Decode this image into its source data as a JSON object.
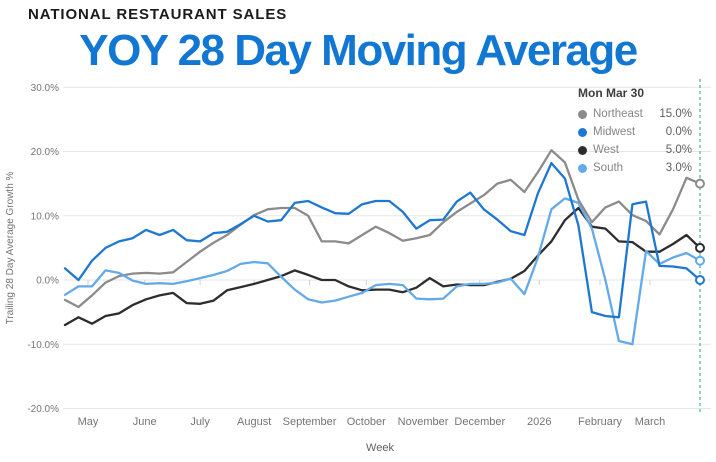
{
  "header": {
    "brand": "NATIONAL RESTAURANT SALES",
    "title": "YOY 28 Day Moving Average",
    "title_color": "#1277d3",
    "brand_color": "#1b1b1b"
  },
  "tooltip": {
    "date_label": "Mon Mar 30",
    "rows": [
      {
        "name": "Northeast",
        "value": "15.0%"
      },
      {
        "name": "Midwest",
        "value": "0.0%"
      },
      {
        "name": "West",
        "value": "5.0%"
      },
      {
        "name": "South",
        "value": "3.0%"
      }
    ]
  },
  "chart_data": {
    "type": "line",
    "title": "YOY 28 Day Moving Average",
    "xlabel": "Week",
    "ylabel": "Trailing 28 Day Average Growth %",
    "ylim": [
      -20,
      30
    ],
    "grid": "horizontal",
    "legend_position": "top-right",
    "y_ticks": [
      {
        "value": 30,
        "label": "30.0%"
      },
      {
        "value": 20,
        "label": "20.0%"
      },
      {
        "value": 10,
        "label": "10.0%"
      },
      {
        "value": 0,
        "label": "0.0%"
      },
      {
        "value": -10,
        "label": "-10.0%"
      },
      {
        "value": -20,
        "label": "-20.0%"
      }
    ],
    "x_ticks": [
      {
        "week": 1.7,
        "label": "May"
      },
      {
        "week": 5.9,
        "label": "June"
      },
      {
        "week": 10,
        "label": "July"
      },
      {
        "week": 14,
        "label": "August"
      },
      {
        "week": 18.1,
        "label": "September"
      },
      {
        "week": 22.3,
        "label": "October"
      },
      {
        "week": 26.5,
        "label": "November"
      },
      {
        "week": 30.7,
        "label": "December"
      },
      {
        "week": 35.1,
        "label": "2026"
      },
      {
        "week": 39.6,
        "label": "February"
      },
      {
        "week": 43.3,
        "label": "March"
      }
    ],
    "n_points": 48,
    "x_is_weekly": true,
    "cursor_date": "Mon Mar 30",
    "cursor_color": "#76c4b2",
    "grid_color": "#e6e6e6",
    "axis_text_color": "#757575",
    "series": [
      {
        "name": "Northeast",
        "color": "#8b8b8b",
        "end_value": 15.0,
        "values": [
          -3.1,
          -4.2,
          -2.4,
          -0.4,
          0.6,
          1.0,
          1.1,
          1.0,
          1.2,
          2.8,
          4.4,
          5.8,
          7.0,
          8.6,
          10.1,
          11.0,
          11.2,
          11.2,
          10.0,
          6.0,
          6.0,
          5.7,
          7.0,
          8.3,
          7.3,
          6.1,
          6.5,
          7.0,
          9.0,
          10.6,
          11.9,
          13.2,
          15.0,
          15.6,
          13.7,
          16.8,
          20.2,
          18.3,
          12.5,
          9.0,
          11.3,
          12.2,
          10.1,
          9.2,
          7.1,
          11.0,
          15.9,
          15.0
        ]
      },
      {
        "name": "Midwest",
        "color": "#1e78d2",
        "end_value": 0.0,
        "values": [
          1.8,
          0.0,
          3.0,
          5.0,
          6.0,
          6.5,
          7.8,
          7.0,
          7.8,
          6.2,
          6.0,
          7.3,
          7.5,
          8.7,
          10.0,
          9.1,
          9.3,
          12.0,
          12.3,
          11.3,
          10.4,
          10.3,
          11.8,
          12.3,
          12.3,
          10.6,
          8.0,
          9.3,
          9.4,
          12.2,
          13.6,
          11.0,
          9.4,
          7.6,
          7.0,
          13.5,
          18.2,
          15.8,
          8.5,
          -5.0,
          -5.6,
          -5.8,
          11.8,
          12.2,
          2.2,
          2.1,
          1.8,
          0.0
        ]
      },
      {
        "name": "West",
        "color": "#2d2d2d",
        "end_value": 5.0,
        "values": [
          -7.0,
          -5.8,
          -6.8,
          -5.6,
          -5.2,
          -3.9,
          -3.0,
          -2.4,
          -2.0,
          -3.6,
          -3.7,
          -3.2,
          -1.6,
          -1.1,
          -0.6,
          0.0,
          0.6,
          1.5,
          0.8,
          0.0,
          0.0,
          -1.0,
          -1.6,
          -1.5,
          -1.5,
          -1.9,
          -1.2,
          0.3,
          -1.0,
          -0.7,
          -0.8,
          -0.8,
          -0.3,
          0.2,
          1.4,
          3.8,
          6.0,
          9.3,
          11.2,
          8.3,
          8.0,
          6.0,
          5.9,
          4.4,
          4.4,
          5.6,
          7.0,
          5.0
        ]
      },
      {
        "name": "South",
        "color": "#64a9e9",
        "end_value": 3.0,
        "values": [
          -2.3,
          -1.0,
          -1.0,
          1.5,
          1.1,
          -0.1,
          -0.6,
          -0.5,
          -0.6,
          -0.2,
          0.3,
          0.8,
          1.4,
          2.5,
          2.8,
          2.6,
          0.5,
          -1.5,
          -3.0,
          -3.5,
          -3.2,
          -2.6,
          -2.0,
          -0.8,
          -0.6,
          -0.8,
          -2.9,
          -3.0,
          -2.9,
          -1.0,
          -0.6,
          -0.6,
          -0.4,
          0.2,
          -2.2,
          3.5,
          11.0,
          12.7,
          12.0,
          8.0,
          0.0,
          -9.5,
          -10.0,
          4.5,
          2.5,
          3.5,
          4.2,
          3.0
        ]
      }
    ]
  }
}
